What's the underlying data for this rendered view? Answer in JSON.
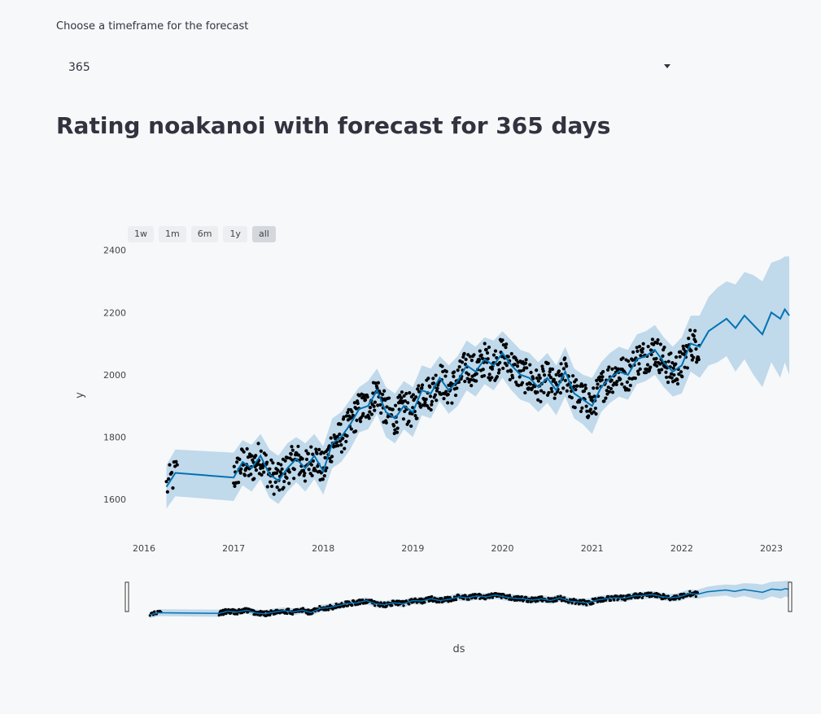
{
  "selector": {
    "label": "Choose a timeframe for the forecast",
    "value": "365"
  },
  "title": "Rating noakanoi with forecast for 365 days",
  "range_buttons": [
    "1w",
    "1m",
    "6m",
    "1y",
    "all"
  ],
  "range_active": "all",
  "colors": {
    "forecast_line": "#0072b2",
    "uncertainty_band": "#b6d3e8",
    "points": "#000000",
    "background": "#f7f8fa"
  },
  "chart_data": {
    "type": "line",
    "title": "",
    "xlabel": "ds",
    "ylabel": "y",
    "x_ticks": [
      "2016",
      "2017",
      "2018",
      "2019",
      "2020",
      "2021",
      "2022",
      "2023"
    ],
    "y_ticks": [
      1600,
      1800,
      2000,
      2200,
      2400
    ],
    "xlim": [
      2016.0,
      2023.2
    ],
    "ylim": [
      1480,
      2420
    ],
    "series": [
      {
        "kind": "forecast",
        "x": [
          2016.25,
          2016.35,
          2017.0,
          2017.1,
          2017.2,
          2017.3,
          2017.4,
          2017.5,
          2017.6,
          2017.7,
          2017.8,
          2017.9,
          2018.0,
          2018.1,
          2018.2,
          2018.3,
          2018.4,
          2018.5,
          2018.6,
          2018.7,
          2018.8,
          2018.9,
          2019.0,
          2019.1,
          2019.2,
          2019.3,
          2019.4,
          2019.5,
          2019.6,
          2019.7,
          2019.8,
          2019.9,
          2020.0,
          2020.1,
          2020.2,
          2020.3,
          2020.4,
          2020.5,
          2020.6,
          2020.7,
          2020.8,
          2020.9,
          2021.0,
          2021.1,
          2021.2,
          2021.3,
          2021.4,
          2021.5,
          2021.6,
          2021.7,
          2021.8,
          2021.9,
          2022.0,
          2022.1,
          2022.2,
          2022.3,
          2022.4,
          2022.5,
          2022.6,
          2022.7,
          2022.8,
          2022.9,
          2023.0,
          2023.1,
          2023.15,
          2023.2
        ],
        "y": [
          1640,
          1685,
          1670,
          1720,
          1700,
          1740,
          1680,
          1660,
          1700,
          1730,
          1700,
          1740,
          1690,
          1780,
          1800,
          1840,
          1890,
          1900,
          1950,
          1880,
          1860,
          1900,
          1880,
          1950,
          1940,
          1990,
          1950,
          1980,
          2030,
          2010,
          2050,
          2030,
          2070,
          2030,
          2000,
          1990,
          1960,
          1990,
          1950,
          2010,
          1940,
          1920,
          1900,
          1960,
          1990,
          2010,
          2000,
          2050,
          2060,
          2080,
          2040,
          2010,
          2030,
          2100,
          2090,
          2140,
          2160,
          2180,
          2150,
          2190,
          2160,
          2130,
          2200,
          2180,
          2210,
          2190
        ]
      },
      {
        "kind": "uncertainty",
        "x": [
          2016.25,
          2016.35,
          2017.0,
          2017.1,
          2017.2,
          2017.3,
          2017.4,
          2017.5,
          2017.6,
          2017.7,
          2017.8,
          2017.9,
          2018.0,
          2018.1,
          2018.2,
          2018.3,
          2018.4,
          2018.5,
          2018.6,
          2018.7,
          2018.8,
          2018.9,
          2019.0,
          2019.1,
          2019.2,
          2019.3,
          2019.4,
          2019.5,
          2019.6,
          2019.7,
          2019.8,
          2019.9,
          2020.0,
          2020.1,
          2020.2,
          2020.3,
          2020.4,
          2020.5,
          2020.6,
          2020.7,
          2020.8,
          2020.9,
          2021.0,
          2021.1,
          2021.2,
          2021.3,
          2021.4,
          2021.5,
          2021.6,
          2021.7,
          2021.8,
          2021.9,
          2022.0,
          2022.1,
          2022.2,
          2022.3,
          2022.4,
          2022.5,
          2022.6,
          2022.7,
          2022.8,
          2022.9,
          2023.0,
          2023.1,
          2023.15,
          2023.2
        ],
        "upper": [
          1710,
          1760,
          1750,
          1790,
          1775,
          1810,
          1760,
          1740,
          1780,
          1800,
          1780,
          1810,
          1770,
          1860,
          1880,
          1920,
          1960,
          1980,
          2020,
          1960,
          1940,
          1980,
          1960,
          2030,
          2020,
          2060,
          2030,
          2060,
          2110,
          2090,
          2120,
          2110,
          2140,
          2110,
          2080,
          2070,
          2040,
          2070,
          2030,
          2090,
          2020,
          2000,
          1990,
          2040,
          2070,
          2090,
          2080,
          2130,
          2140,
          2160,
          2120,
          2090,
          2120,
          2190,
          2190,
          2250,
          2280,
          2300,
          2290,
          2330,
          2320,
          2300,
          2360,
          2370,
          2380,
          2380
        ],
        "lower": [
          1570,
          1610,
          1595,
          1645,
          1625,
          1665,
          1605,
          1585,
          1625,
          1655,
          1625,
          1665,
          1615,
          1700,
          1720,
          1760,
          1815,
          1825,
          1875,
          1800,
          1780,
          1825,
          1800,
          1870,
          1860,
          1915,
          1875,
          1900,
          1950,
          1930,
          1970,
          1950,
          1990,
          1950,
          1920,
          1910,
          1880,
          1910,
          1870,
          1930,
          1860,
          1840,
          1810,
          1880,
          1910,
          1930,
          1920,
          1970,
          1980,
          2000,
          1960,
          1930,
          1940,
          2010,
          1990,
          2030,
          2040,
          2060,
          2010,
          2050,
          2000,
          1960,
          2040,
          1990,
          2040,
          2000
        ]
      }
    ]
  }
}
